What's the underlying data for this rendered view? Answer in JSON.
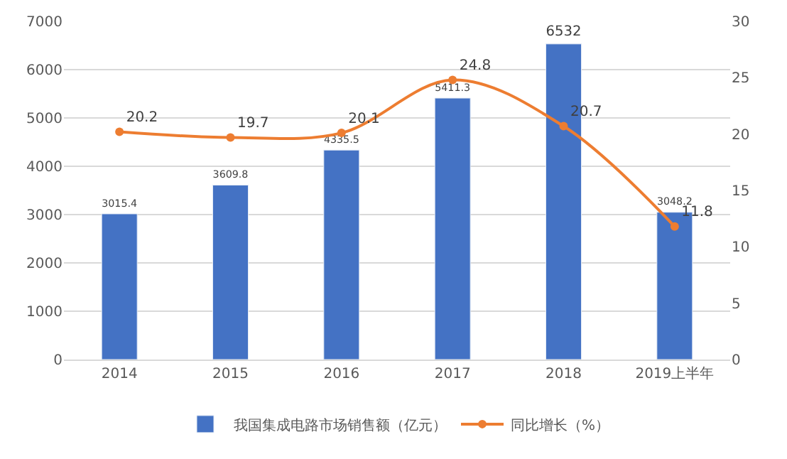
{
  "chart_data": {
    "type": "bar",
    "categories": [
      "2014",
      "2015",
      "2016",
      "2017",
      "2018",
      "2019上半年"
    ],
    "series": [
      {
        "name": "我国集成电路市场销售额（亿元）",
        "color": "#4472c4",
        "values": [
          3015.4,
          3609.8,
          4335.5,
          5411.3,
          6532,
          3048.2
        ]
      },
      {
        "name": "同比增长（%）",
        "type": "line",
        "axis": "y2",
        "color": "#ed7d31",
        "values": [
          20.2,
          19.7,
          20.1,
          24.8,
          20.7,
          11.8
        ]
      }
    ],
    "ylim": [
      0,
      7000
    ],
    "yticks": [
      0,
      1000,
      2000,
      3000,
      4000,
      5000,
      6000,
      7000
    ],
    "y2lim": [
      0,
      30
    ],
    "y2ticks": [
      0,
      5,
      10,
      15,
      20,
      25,
      30
    ],
    "data_labels": true,
    "grid": "y",
    "legend": "bottom",
    "marker": "circle",
    "line_style": "solid"
  }
}
